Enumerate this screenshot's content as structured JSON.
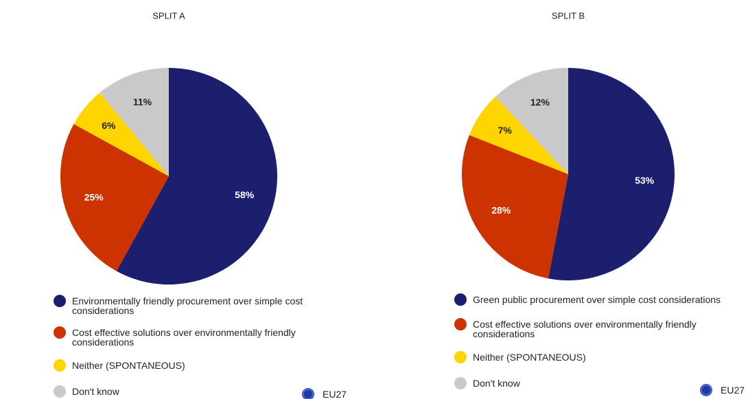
{
  "chart_data": [
    {
      "type": "pie",
      "title": "SPLIT A",
      "categories": [
        "Environmentally friendly procurement over simple cost considerations",
        "Cost effective solutions over environmentally friendly considerations",
        "Neither (SPONTANEOUS)",
        "Don't know"
      ],
      "values": [
        58,
        25,
        6,
        11
      ],
      "value_labels": [
        "58%",
        "25%",
        "6%",
        "11%"
      ],
      "colors": [
        "#1b1f6e",
        "#cc3300",
        "#ffd500",
        "#c9c9c9"
      ],
      "annotation": "EU27"
    },
    {
      "type": "pie",
      "title": "SPLIT B",
      "categories": [
        "Green public procurement over simple cost considerations",
        "Cost effective solutions over environmentally friendly considerations",
        "Neither (SPONTANEOUS)",
        "Don't know"
      ],
      "values": [
        53,
        28,
        7,
        12
      ],
      "value_labels": [
        "53%",
        "28%",
        "7%",
        "12%"
      ],
      "colors": [
        "#1b1f6e",
        "#cc3300",
        "#ffd500",
        "#c9c9c9"
      ],
      "annotation": "EU27"
    }
  ]
}
